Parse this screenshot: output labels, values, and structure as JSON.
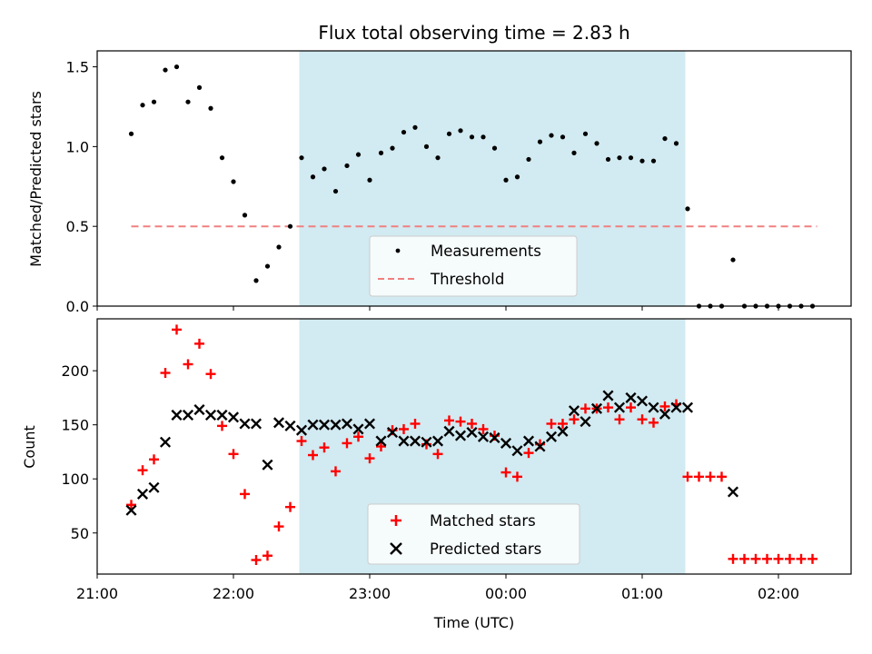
{
  "chart_data": [
    {
      "type": "scatter",
      "title": "Flux total observing time = 2.83 h",
      "ylabel": "Matched/Predicted stars",
      "xlabel": "",
      "ylim": [
        0,
        1.6
      ],
      "yticks": [
        "0.0",
        "0.5",
        "1.0",
        "1.5"
      ],
      "grid": false,
      "legend_placement": "lower-center",
      "shaded_region": {
        "x_start": "22:29",
        "x_end": "01:19",
        "color": "#add8e6"
      },
      "series": [
        {
          "name": "Measurements",
          "marker": "dot",
          "color": "#000000",
          "x": [
            "21:15",
            "21:20",
            "21:25",
            "21:30",
            "21:35",
            "21:40",
            "21:45",
            "21:50",
            "21:55",
            "22:00",
            "22:05",
            "22:10",
            "22:15",
            "22:20",
            "22:25",
            "22:30",
            "22:35",
            "22:40",
            "22:45",
            "22:50",
            "22:55",
            "23:00",
            "23:05",
            "23:10",
            "23:15",
            "23:20",
            "23:25",
            "23:30",
            "23:35",
            "23:40",
            "23:45",
            "23:50",
            "23:55",
            "00:00",
            "00:05",
            "00:10",
            "00:15",
            "00:20",
            "00:25",
            "00:30",
            "00:35",
            "00:40",
            "00:45",
            "00:50",
            "00:55",
            "01:00",
            "01:05",
            "01:10",
            "01:15",
            "01:20",
            "01:25",
            "01:30",
            "01:35",
            "01:40",
            "01:45",
            "01:50",
            "01:55",
            "02:00",
            "02:05",
            "02:10",
            "02:15"
          ],
          "y": [
            1.08,
            1.26,
            1.28,
            1.48,
            1.5,
            1.28,
            1.37,
            1.24,
            0.93,
            0.78,
            0.57,
            0.16,
            0.25,
            0.37,
            0.5,
            0.93,
            0.81,
            0.86,
            0.72,
            0.88,
            0.95,
            0.79,
            0.96,
            0.99,
            1.09,
            1.12,
            1.0,
            0.93,
            1.08,
            1.1,
            1.06,
            1.06,
            0.99,
            0.79,
            0.81,
            0.92,
            1.03,
            1.07,
            1.06,
            0.96,
            1.08,
            1.02,
            0.92,
            0.93,
            0.93,
            0.91,
            0.91,
            1.05,
            1.02,
            0.61,
            0.0,
            0.0,
            0.0,
            0.29,
            0.0,
            0.0,
            0.0,
            0.0,
            0.0,
            0.0,
            0.0
          ]
        },
        {
          "name": "Threshold",
          "style": "dashed",
          "color": "#f08080",
          "x": [
            "21:15",
            "02:17"
          ],
          "y": [
            0.5,
            0.5
          ]
        }
      ]
    },
    {
      "type": "scatter",
      "title": "",
      "xlabel": "Time (UTC)",
      "ylabel": "Count",
      "ylim": [
        12,
        248
      ],
      "yticks": [
        "50",
        "100",
        "150",
        "200"
      ],
      "xticks": [
        "21:00",
        "22:00",
        "23:00",
        "00:00",
        "01:00",
        "02:00"
      ],
      "grid": false,
      "legend_placement": "lower-center",
      "shaded_region": {
        "x_start": "22:29",
        "x_end": "01:19",
        "color": "#add8e6"
      },
      "series": [
        {
          "name": "Matched stars",
          "marker": "plus",
          "color": "#ff0000",
          "x": [
            "21:15",
            "21:20",
            "21:25",
            "21:30",
            "21:35",
            "21:40",
            "21:45",
            "21:50",
            "21:55",
            "22:00",
            "22:05",
            "22:10",
            "22:15",
            "22:20",
            "22:25",
            "22:30",
            "22:35",
            "22:40",
            "22:45",
            "22:50",
            "22:55",
            "23:00",
            "23:05",
            "23:10",
            "23:15",
            "23:20",
            "23:25",
            "23:30",
            "23:35",
            "23:40",
            "23:45",
            "23:50",
            "23:55",
            "00:00",
            "00:05",
            "00:10",
            "00:15",
            "00:20",
            "00:25",
            "00:30",
            "00:35",
            "00:40",
            "00:45",
            "00:50",
            "00:55",
            "01:00",
            "01:05",
            "01:10",
            "01:15",
            "01:20",
            "01:25",
            "01:30",
            "01:35",
            "01:40",
            "01:45",
            "01:50",
            "01:55",
            "02:00",
            "02:05",
            "02:10",
            "02:15"
          ],
          "y": [
            76,
            108,
            118,
            198,
            238,
            206,
            225,
            197,
            149,
            123,
            86,
            25,
            29,
            56,
            74,
            135,
            122,
            129,
            107,
            133,
            139,
            119,
            130,
            145,
            146,
            151,
            132,
            123,
            154,
            153,
            151,
            146,
            140,
            106,
            102,
            124,
            132,
            151,
            151,
            155,
            165,
            165,
            166,
            155,
            166,
            155,
            152,
            167,
            169,
            102,
            102,
            102,
            102,
            26,
            26,
            26,
            26,
            26,
            26,
            26,
            26
          ]
        },
        {
          "name": "Predicted stars",
          "marker": "x",
          "color": "#000000",
          "x": [
            "21:15",
            "21:20",
            "21:25",
            "21:30",
            "21:35",
            "21:40",
            "21:45",
            "21:50",
            "21:55",
            "22:00",
            "22:05",
            "22:10",
            "22:15",
            "22:20",
            "22:25",
            "22:30",
            "22:35",
            "22:40",
            "22:45",
            "22:50",
            "22:55",
            "23:00",
            "23:05",
            "23:10",
            "23:15",
            "23:20",
            "23:25",
            "23:30",
            "23:35",
            "23:40",
            "23:45",
            "23:50",
            "23:55",
            "00:00",
            "00:05",
            "00:10",
            "00:15",
            "00:20",
            "00:25",
            "00:30",
            "00:35",
            "00:40",
            "00:45",
            "00:50",
            "00:55",
            "01:00",
            "01:05",
            "01:10",
            "01:15",
            "01:20",
            "01:40"
          ],
          "y": [
            71,
            86,
            92,
            134,
            159,
            159,
            164,
            159,
            159,
            157,
            151,
            151,
            113,
            152,
            149,
            145,
            150,
            150,
            150,
            151,
            146,
            151,
            135,
            143,
            135,
            135,
            134,
            135,
            144,
            140,
            143,
            139,
            138,
            133,
            126,
            135,
            130,
            139,
            144,
            163,
            153,
            165,
            177,
            166,
            175,
            172,
            166,
            160,
            166,
            166,
            88
          ]
        }
      ]
    }
  ]
}
